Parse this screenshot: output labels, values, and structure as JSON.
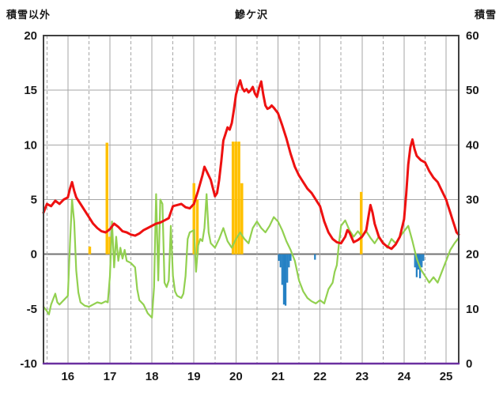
{
  "header": {
    "left_axis_title": "積雪以外",
    "chart_title": "鰺ケ沢",
    "right_axis_title": "積雪"
  },
  "colors": {
    "background": "#ffffff",
    "frame": "#404040",
    "grid": "#a6a6a6",
    "zero_line": "#737373",
    "text": "#1a1a1a",
    "red_line": "#ee1111",
    "green_line": "#92d050",
    "orange_bars": "#ffc000",
    "blue_bars": "#2581c4",
    "purple_line": "#6a2fa0"
  },
  "chart_data": {
    "type": "line",
    "title": "鰺ケ沢",
    "left_axis": {
      "label": "積雪以外",
      "min": -10,
      "max": 20,
      "ticks": [
        20,
        15,
        10,
        5,
        0,
        -5,
        -10
      ]
    },
    "right_axis": {
      "label": "積雪",
      "min": 0,
      "max": 60,
      "ticks": [
        60,
        50,
        40,
        30,
        20,
        10,
        0
      ]
    },
    "x_axis": {
      "min": 15.42,
      "max": 25.3,
      "day_labels": [
        16,
        17,
        18,
        19,
        20,
        21,
        22,
        23,
        24,
        25
      ],
      "solid_gridlines": [
        16,
        17,
        18,
        19,
        20,
        21,
        22,
        23,
        24,
        25
      ],
      "dashed_gridlines": [
        15.5,
        16.5,
        17.5,
        18.5,
        19.5,
        20.5,
        21.5,
        22.5,
        23.5,
        24.5
      ]
    },
    "series": [
      {
        "name": "orange_bars",
        "type": "bar",
        "color": "#ffc000",
        "bar_width": 0.065,
        "points": [
          [
            16.52,
            0.7
          ],
          [
            16.93,
            10.2
          ],
          [
            17.0,
            1.6
          ],
          [
            19.0,
            6.5
          ],
          [
            19.08,
            5.0
          ],
          [
            19.93,
            10.3
          ],
          [
            20.0,
            10.3
          ],
          [
            20.07,
            10.3
          ],
          [
            20.14,
            6.5
          ],
          [
            22.98,
            5.7
          ]
        ]
      },
      {
        "name": "blue_bars",
        "type": "bar",
        "color": "#2581c4",
        "bar_width": 0.042,
        "points": [
          [
            21.02,
            -0.6
          ],
          [
            21.06,
            -1.2
          ],
          [
            21.1,
            -2.8
          ],
          [
            21.14,
            -4.6
          ],
          [
            21.18,
            -4.7
          ],
          [
            21.22,
            -2.6
          ],
          [
            21.26,
            -1.2
          ],
          [
            21.3,
            -0.6
          ],
          [
            21.88,
            -0.5
          ],
          [
            24.26,
            -1.2
          ],
          [
            24.3,
            -2.1
          ],
          [
            24.34,
            -1.4
          ],
          [
            24.38,
            -2.2
          ],
          [
            24.42,
            -1.2
          ],
          [
            24.46,
            -0.6
          ]
        ]
      },
      {
        "name": "green_line",
        "type": "line",
        "color": "#92d050",
        "width": 2.2,
        "points": [
          [
            15.42,
            -4.8
          ],
          [
            15.5,
            -5.2
          ],
          [
            15.55,
            -5.5
          ],
          [
            15.6,
            -4.6
          ],
          [
            15.7,
            -3.6
          ],
          [
            15.75,
            -4.4
          ],
          [
            15.8,
            -4.6
          ],
          [
            15.9,
            -4.2
          ],
          [
            16.0,
            -3.8
          ],
          [
            16.05,
            1.0
          ],
          [
            16.1,
            5.0
          ],
          [
            16.15,
            3.0
          ],
          [
            16.2,
            -1.5
          ],
          [
            16.25,
            -3.5
          ],
          [
            16.3,
            -4.4
          ],
          [
            16.4,
            -4.7
          ],
          [
            16.5,
            -4.8
          ],
          [
            16.6,
            -4.6
          ],
          [
            16.7,
            -4.4
          ],
          [
            16.8,
            -4.5
          ],
          [
            16.9,
            -4.3
          ],
          [
            16.95,
            -4.4
          ],
          [
            17.0,
            -2.0
          ],
          [
            17.05,
            3.0
          ],
          [
            17.1,
            -1.2
          ],
          [
            17.15,
            1.6
          ],
          [
            17.2,
            -0.6
          ],
          [
            17.25,
            0.6
          ],
          [
            17.3,
            -0.4
          ],
          [
            17.35,
            0.4
          ],
          [
            17.4,
            -0.6
          ],
          [
            17.5,
            -0.8
          ],
          [
            17.6,
            -1.2
          ],
          [
            17.65,
            -3.2
          ],
          [
            17.7,
            -4.2
          ],
          [
            17.8,
            -4.6
          ],
          [
            17.9,
            -5.4
          ],
          [
            18.0,
            -5.8
          ],
          [
            18.05,
            -3.0
          ],
          [
            18.1,
            5.5
          ],
          [
            18.15,
            -2.4
          ],
          [
            18.2,
            5.0
          ],
          [
            18.25,
            4.6
          ],
          [
            18.3,
            -2.6
          ],
          [
            18.35,
            -3.0
          ],
          [
            18.4,
            -2.4
          ],
          [
            18.45,
            2.6
          ],
          [
            18.5,
            -2.0
          ],
          [
            18.55,
            -3.4
          ],
          [
            18.6,
            -3.8
          ],
          [
            18.7,
            -4.0
          ],
          [
            18.75,
            -3.6
          ],
          [
            18.8,
            -2.0
          ],
          [
            18.85,
            1.4
          ],
          [
            18.9,
            2.0
          ],
          [
            19.0,
            2.2
          ],
          [
            19.05,
            -1.6
          ],
          [
            19.1,
            0.8
          ],
          [
            19.15,
            1.4
          ],
          [
            19.2,
            1.2
          ],
          [
            19.25,
            2.4
          ],
          [
            19.3,
            5.5
          ],
          [
            19.35,
            2.0
          ],
          [
            19.4,
            1.0
          ],
          [
            19.5,
            0.6
          ],
          [
            19.6,
            1.4
          ],
          [
            19.7,
            2.4
          ],
          [
            19.8,
            1.2
          ],
          [
            19.9,
            0.6
          ],
          [
            20.0,
            1.4
          ],
          [
            20.1,
            2.0
          ],
          [
            20.2,
            1.4
          ],
          [
            20.3,
            1.0
          ],
          [
            20.4,
            2.4
          ],
          [
            20.5,
            3.0
          ],
          [
            20.6,
            2.4
          ],
          [
            20.7,
            2.0
          ],
          [
            20.8,
            2.6
          ],
          [
            20.9,
            3.4
          ],
          [
            21.0,
            3.0
          ],
          [
            21.1,
            2.2
          ],
          [
            21.2,
            1.2
          ],
          [
            21.3,
            0.4
          ],
          [
            21.4,
            -0.6
          ],
          [
            21.5,
            -2.4
          ],
          [
            21.6,
            -3.4
          ],
          [
            21.7,
            -4.0
          ],
          [
            21.8,
            -4.3
          ],
          [
            21.9,
            -4.5
          ],
          [
            22.0,
            -4.2
          ],
          [
            22.1,
            -4.5
          ],
          [
            22.2,
            -3.2
          ],
          [
            22.3,
            -2.6
          ],
          [
            22.35,
            -1.6
          ],
          [
            22.4,
            -1.0
          ],
          [
            22.45,
            1.0
          ],
          [
            22.5,
            2.6
          ],
          [
            22.6,
            3.1
          ],
          [
            22.7,
            2.2
          ],
          [
            22.8,
            1.6
          ],
          [
            22.9,
            2.1
          ],
          [
            23.0,
            1.6
          ],
          [
            23.1,
            2.1
          ],
          [
            23.2,
            1.5
          ],
          [
            23.3,
            1.0
          ],
          [
            23.4,
            1.6
          ],
          [
            23.5,
            1.1
          ],
          [
            23.6,
            0.6
          ],
          [
            23.7,
            1.4
          ],
          [
            23.8,
            1.0
          ],
          [
            23.9,
            1.6
          ],
          [
            24.0,
            2.1
          ],
          [
            24.1,
            2.6
          ],
          [
            24.2,
            1.2
          ],
          [
            24.3,
            -0.4
          ],
          [
            24.4,
            -1.4
          ],
          [
            24.5,
            -2.0
          ],
          [
            24.6,
            -2.6
          ],
          [
            24.7,
            -2.1
          ],
          [
            24.8,
            -2.6
          ],
          [
            24.9,
            -1.6
          ],
          [
            25.0,
            -0.6
          ],
          [
            25.1,
            0.4
          ],
          [
            25.2,
            1.0
          ],
          [
            25.3,
            1.5
          ]
        ]
      },
      {
        "name": "red_line",
        "type": "line",
        "color": "#ee1111",
        "width": 3,
        "points": [
          [
            15.42,
            3.8
          ],
          [
            15.5,
            4.6
          ],
          [
            15.6,
            4.4
          ],
          [
            15.7,
            4.9
          ],
          [
            15.8,
            4.6
          ],
          [
            15.9,
            5.0
          ],
          [
            16.0,
            5.2
          ],
          [
            16.05,
            6.0
          ],
          [
            16.1,
            6.6
          ],
          [
            16.15,
            5.8
          ],
          [
            16.2,
            5.2
          ],
          [
            16.3,
            4.6
          ],
          [
            16.4,
            4.0
          ],
          [
            16.5,
            3.4
          ],
          [
            16.6,
            2.8
          ],
          [
            16.7,
            2.4
          ],
          [
            16.8,
            2.1
          ],
          [
            16.9,
            2.0
          ],
          [
            17.0,
            2.3
          ],
          [
            17.1,
            2.8
          ],
          [
            17.2,
            2.5
          ],
          [
            17.3,
            2.1
          ],
          [
            17.4,
            2.0
          ],
          [
            17.5,
            1.8
          ],
          [
            17.6,
            1.7
          ],
          [
            17.7,
            1.9
          ],
          [
            17.8,
            2.2
          ],
          [
            17.9,
            2.4
          ],
          [
            18.0,
            2.6
          ],
          [
            18.1,
            2.8
          ],
          [
            18.2,
            2.9
          ],
          [
            18.3,
            3.1
          ],
          [
            18.4,
            3.3
          ],
          [
            18.5,
            4.4
          ],
          [
            18.6,
            4.5
          ],
          [
            18.7,
            4.6
          ],
          [
            18.8,
            4.3
          ],
          [
            18.9,
            4.2
          ],
          [
            19.0,
            4.6
          ],
          [
            19.1,
            5.8
          ],
          [
            19.2,
            7.2
          ],
          [
            19.25,
            8.0
          ],
          [
            19.3,
            7.6
          ],
          [
            19.4,
            6.8
          ],
          [
            19.5,
            5.3
          ],
          [
            19.55,
            5.6
          ],
          [
            19.6,
            6.8
          ],
          [
            19.65,
            8.5
          ],
          [
            19.7,
            10.4
          ],
          [
            19.75,
            11.0
          ],
          [
            19.8,
            11.6
          ],
          [
            19.85,
            11.4
          ],
          [
            19.9,
            12.0
          ],
          [
            19.95,
            13.2
          ],
          [
            20.0,
            14.6
          ],
          [
            20.05,
            15.3
          ],
          [
            20.1,
            15.9
          ],
          [
            20.15,
            15.2
          ],
          [
            20.2,
            14.9
          ],
          [
            20.25,
            15.1
          ],
          [
            20.3,
            14.8
          ],
          [
            20.35,
            15.0
          ],
          [
            20.4,
            15.3
          ],
          [
            20.45,
            14.7
          ],
          [
            20.5,
            14.4
          ],
          [
            20.55,
            15.2
          ],
          [
            20.6,
            15.8
          ],
          [
            20.65,
            14.6
          ],
          [
            20.7,
            13.6
          ],
          [
            20.75,
            13.3
          ],
          [
            20.8,
            13.4
          ],
          [
            20.85,
            13.6
          ],
          [
            20.9,
            13.4
          ],
          [
            21.0,
            12.9
          ],
          [
            21.1,
            11.8
          ],
          [
            21.2,
            10.6
          ],
          [
            21.3,
            9.2
          ],
          [
            21.4,
            8.0
          ],
          [
            21.5,
            7.2
          ],
          [
            21.6,
            6.6
          ],
          [
            21.7,
            6.0
          ],
          [
            21.8,
            5.6
          ],
          [
            21.9,
            5.0
          ],
          [
            22.0,
            4.4
          ],
          [
            22.1,
            3.0
          ],
          [
            22.2,
            2.0
          ],
          [
            22.3,
            1.4
          ],
          [
            22.4,
            1.1
          ],
          [
            22.5,
            1.0
          ],
          [
            22.6,
            1.6
          ],
          [
            22.65,
            2.2
          ],
          [
            22.7,
            2.0
          ],
          [
            22.8,
            1.1
          ],
          [
            22.9,
            1.3
          ],
          [
            23.0,
            1.6
          ],
          [
            23.1,
            2.2
          ],
          [
            23.15,
            3.4
          ],
          [
            23.2,
            4.5
          ],
          [
            23.25,
            3.8
          ],
          [
            23.3,
            2.8
          ],
          [
            23.4,
            1.6
          ],
          [
            23.5,
            1.0
          ],
          [
            23.6,
            0.7
          ],
          [
            23.7,
            0.5
          ],
          [
            23.8,
            0.9
          ],
          [
            23.9,
            1.6
          ],
          [
            24.0,
            3.2
          ],
          [
            24.05,
            5.5
          ],
          [
            24.1,
            8.2
          ],
          [
            24.15,
            9.8
          ],
          [
            24.2,
            10.5
          ],
          [
            24.25,
            9.6
          ],
          [
            24.3,
            9.0
          ],
          [
            24.4,
            8.6
          ],
          [
            24.5,
            8.4
          ],
          [
            24.6,
            7.6
          ],
          [
            24.7,
            7.0
          ],
          [
            24.8,
            6.6
          ],
          [
            24.9,
            5.8
          ],
          [
            25.0,
            5.0
          ],
          [
            25.05,
            4.4
          ],
          [
            25.1,
            3.8
          ],
          [
            25.15,
            3.2
          ],
          [
            25.2,
            2.6
          ],
          [
            25.25,
            2.0
          ],
          [
            25.3,
            1.8
          ]
        ]
      },
      {
        "name": "purple_line",
        "type": "line",
        "color": "#6a2fa0",
        "width": 2.5,
        "draw_above_frame": true,
        "points": [
          [
            15.42,
            -10
          ],
          [
            25.3,
            -10
          ]
        ]
      }
    ]
  }
}
